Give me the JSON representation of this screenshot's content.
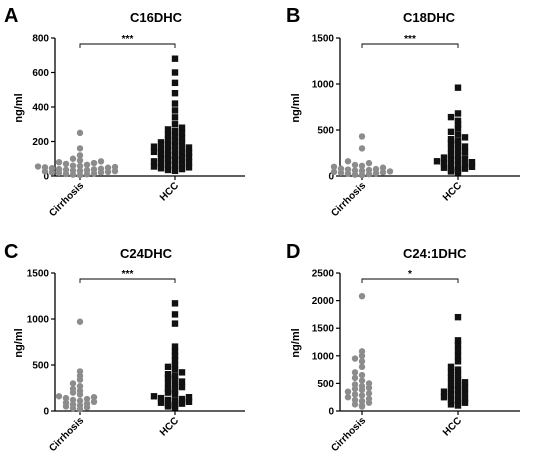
{
  "chart_data": [
    {
      "panel": "A",
      "title": "C16DHC",
      "type": "scatter",
      "ylabel": "ng/ml",
      "ylim": [
        0,
        800
      ],
      "yticks": [
        0,
        200,
        400,
        600,
        800
      ],
      "categories": [
        "Cirrhosis",
        "HCC"
      ],
      "significance": "***",
      "series": [
        {
          "values": [
            250,
            160,
            120,
            100,
            90,
            85,
            80,
            75,
            70,
            65,
            60,
            58,
            55,
            52,
            50,
            48,
            45,
            42,
            40,
            38,
            36,
            34,
            32,
            30,
            28,
            26,
            24,
            22,
            20,
            18,
            15,
            12,
            10,
            8,
            5
          ]
        },
        {
          "values": [
            680,
            600,
            540,
            480,
            420,
            380,
            340,
            300,
            280,
            270,
            260,
            250,
            240,
            230,
            220,
            210,
            200,
            195,
            190,
            180,
            175,
            170,
            165,
            160,
            155,
            150,
            145,
            140,
            135,
            130,
            125,
            120,
            115,
            110,
            105,
            100,
            95,
            90,
            85,
            80,
            75,
            70,
            65,
            60,
            55,
            50,
            45,
            40,
            35,
            30
          ]
        }
      ]
    },
    {
      "panel": "B",
      "title": "C18DHC",
      "type": "scatter",
      "ylabel": "ng/ml",
      "ylim": [
        0,
        1500
      ],
      "yticks": [
        0,
        500,
        1000,
        1500
      ],
      "categories": [
        "Cirrhosis",
        "HCC"
      ],
      "significance": "***",
      "series": [
        {
          "values": [
            430,
            300,
            160,
            140,
            120,
            110,
            100,
            90,
            80,
            75,
            70,
            65,
            60,
            55,
            50,
            45,
            40,
            35,
            30,
            25,
            20,
            15,
            10
          ]
        },
        {
          "values": [
            960,
            680,
            640,
            600,
            560,
            520,
            480,
            450,
            420,
            400,
            380,
            360,
            340,
            320,
            300,
            280,
            260,
            240,
            220,
            200,
            190,
            180,
            170,
            160,
            150,
            140,
            130,
            120,
            110,
            100,
            90,
            80,
            70,
            60,
            50,
            40
          ]
        }
      ]
    },
    {
      "panel": "C",
      "title": "C24DHC",
      "type": "scatter",
      "ylabel": "ng/ml",
      "ylim": [
        0,
        1500
      ],
      "yticks": [
        0,
        500,
        1000,
        1500
      ],
      "categories": [
        "Cirrhosis",
        "HCC"
      ],
      "significance": "***",
      "series": [
        {
          "values": [
            970,
            430,
            380,
            340,
            300,
            270,
            240,
            220,
            200,
            180,
            160,
            150,
            140,
            130,
            120,
            110,
            100,
            90,
            80,
            70,
            60,
            50,
            40,
            30,
            20
          ]
        },
        {
          "values": [
            1170,
            1050,
            950,
            700,
            650,
            600,
            550,
            500,
            480,
            450,
            420,
            400,
            380,
            360,
            340,
            320,
            300,
            280,
            260,
            240,
            220,
            200,
            180,
            160,
            150,
            140,
            130,
            120,
            110,
            100,
            90,
            80,
            70,
            60,
            50,
            40
          ]
        }
      ]
    },
    {
      "panel": "D",
      "title": "C24:1DHC",
      "type": "scatter",
      "ylabel": "ng/ml",
      "ylim": [
        0,
        2500
      ],
      "yticks": [
        0,
        500,
        1000,
        1500,
        2000,
        2500
      ],
      "categories": [
        "Cirrhosis",
        "HCC"
      ],
      "significance": "*",
      "series": [
        {
          "values": [
            2080,
            1080,
            1000,
            950,
            900,
            800,
            700,
            650,
            600,
            550,
            500,
            480,
            450,
            420,
            400,
            380,
            350,
            320,
            300,
            280,
            250,
            220,
            200,
            180,
            150,
            120,
            100,
            80
          ]
        },
        {
          "values": [
            1700,
            1280,
            1200,
            1100,
            1000,
            900,
            800,
            750,
            700,
            650,
            600,
            560,
            520,
            500,
            460,
            420,
            400,
            380,
            350,
            320,
            300,
            280,
            250,
            220,
            200,
            180,
            150,
            120,
            100
          ]
        }
      ]
    }
  ],
  "colors": {
    "Cirrhosis": "#8c8c8c",
    "HCC": "#111111"
  },
  "markers": {
    "Cirrhosis": "circle",
    "HCC": "square"
  }
}
